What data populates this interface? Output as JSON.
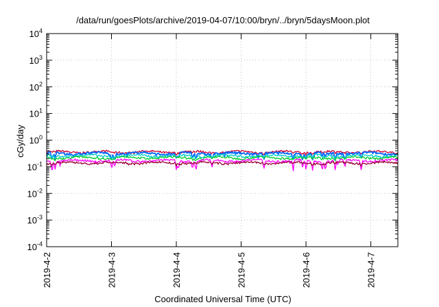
{
  "chart_data": {
    "type": "line",
    "title": "/data/run/goesPlots/archive/2019-04-07/10:00/bryn/../bryn/5daysMoon.plot",
    "xlabel": "Coordinated Universal Time (UTC)",
    "ylabel": "cGy/day",
    "yscale": "log",
    "ylim_exponents": [
      -4,
      4
    ],
    "y_tick_base": "10",
    "y_tick_exponents": [
      "-4",
      "-3",
      "-2",
      "-1",
      "0",
      "1",
      "2",
      "3",
      "4"
    ],
    "x_range_days": [
      "2019-4-2",
      "2019-4-7 10:00"
    ],
    "x_tick_labels": [
      "2019-4-2",
      "2019-4-3",
      "2019-4-4",
      "2019-4-5",
      "2019-4-6",
      "2019-4-7"
    ],
    "grid": true,
    "legend": "none",
    "series": [
      {
        "color": "#cc0033",
        "base": 0.36,
        "dips": 0.1
      },
      {
        "color": "#0066ff",
        "base": 0.32,
        "dips": 0.4
      },
      {
        "color": "#00cccc",
        "base": 0.26,
        "dips": 0.2
      },
      {
        "color": "#00cc33",
        "base": 0.22,
        "dips": 0.12
      },
      {
        "color": "#ff00ff",
        "base": 0.17,
        "dips": 0.55
      },
      {
        "color": "#990033",
        "base": 0.14,
        "dips": 0.1
      }
    ],
    "dip_days": [
      0.08,
      0.13,
      1.0,
      1.05,
      2.0,
      2.03,
      2.25,
      2.3,
      2.55,
      3.35,
      3.8,
      3.95,
      4.0,
      4.1,
      4.25,
      4.3,
      4.45,
      4.6,
      4.85
    ]
  }
}
